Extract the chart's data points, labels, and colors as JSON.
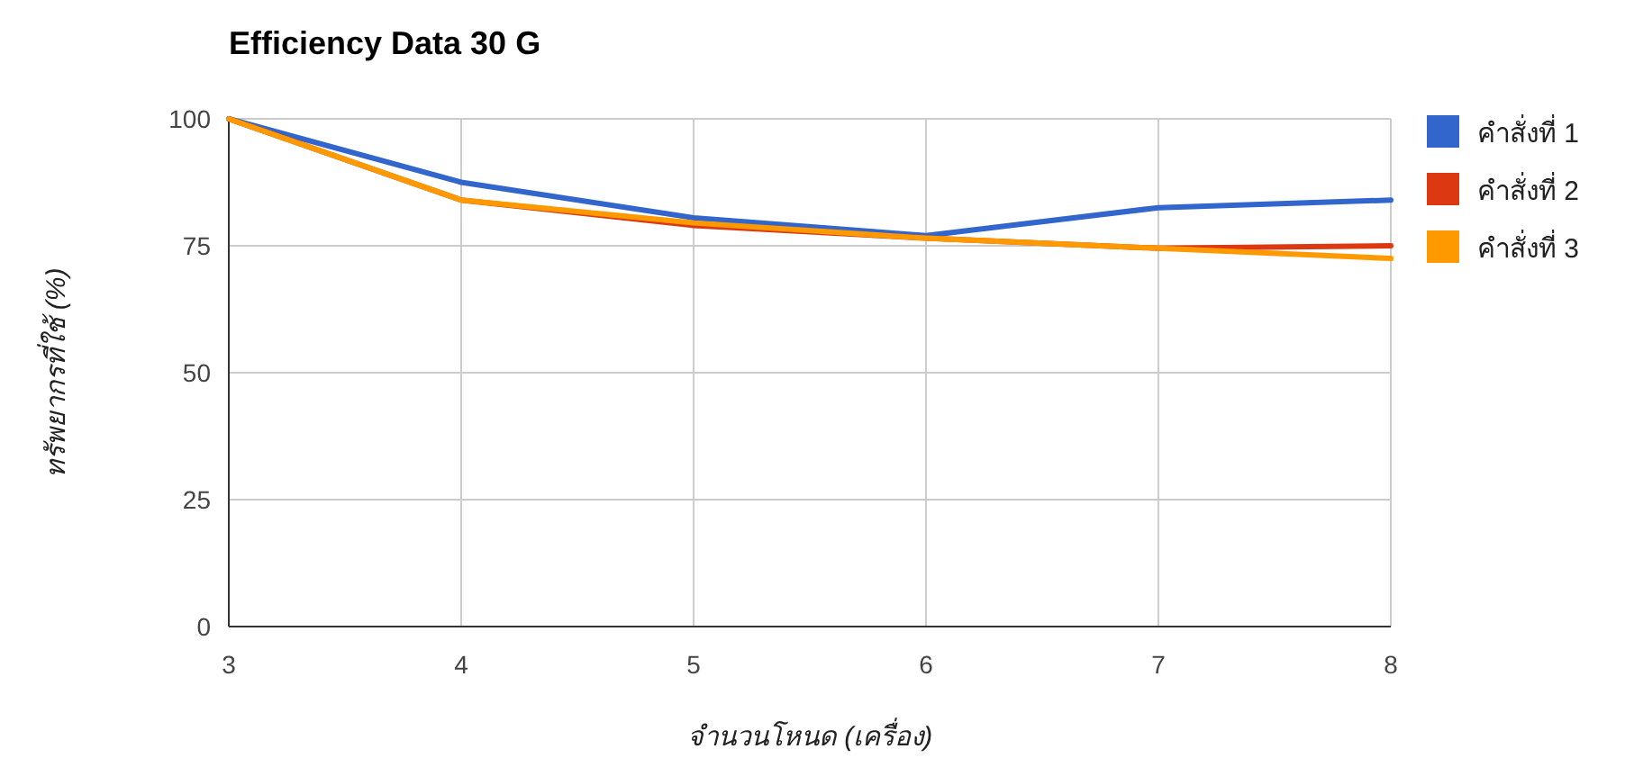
{
  "chart_data": {
    "type": "line",
    "title": "Efficiency Data 30 G",
    "xlabel": "จำนวนโหนด (เครื่อง)",
    "ylabel": "ทรัพยากรที่ใช้ (%)",
    "x": [
      3,
      4,
      5,
      6,
      7,
      8
    ],
    "series": [
      {
        "name": "คำสั่งที่ 1",
        "color": "#3366cc",
        "values": [
          100,
          87.5,
          80.5,
          77,
          82.5,
          84
        ]
      },
      {
        "name": "คำสั่งที่ 2",
        "color": "#dc3912",
        "values": [
          100,
          84,
          79,
          76.5,
          74.5,
          75
        ]
      },
      {
        "name": "คำสั่งที่ 3",
        "color": "#ff9900",
        "values": [
          100,
          84,
          79.5,
          76.5,
          74.5,
          72.5
        ]
      }
    ],
    "xlim": [
      3,
      8
    ],
    "xticks": [
      3,
      4,
      5,
      6,
      7,
      8
    ],
    "ylim": [
      0,
      100
    ],
    "yticks": [
      0,
      25,
      50,
      75,
      100
    ],
    "grid": true,
    "legend": "right",
    "marker": "none",
    "line_style": "solid"
  }
}
